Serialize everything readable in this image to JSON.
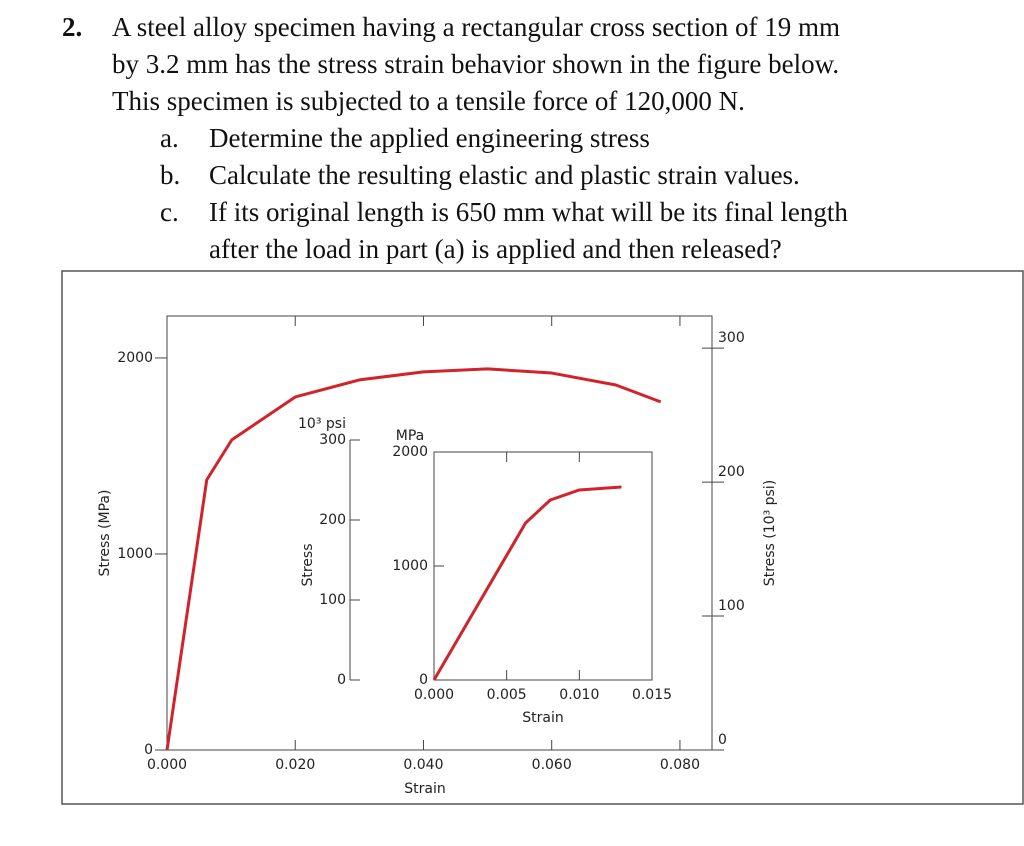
{
  "question": {
    "number": "2.",
    "lines": [
      "A steel alloy specimen having a rectangular cross section of 19 mm",
      "by 3.2 mm has the stress strain behavior shown in the figure below.",
      "This specimen is subjected to a tensile force of 120,000 N."
    ],
    "items": [
      {
        "label": "a.",
        "lines": [
          "Determine the applied engineering stress"
        ]
      },
      {
        "label": "b.",
        "lines": [
          "Calculate the resulting elastic and plastic strain values."
        ]
      },
      {
        "label": "c.",
        "lines": [
          "If its original length is 650 mm what will be its final length",
          "after the load in part (a) is applied and then released?"
        ]
      }
    ]
  },
  "chart_data": [
    {
      "type": "line",
      "x_label": "Strain",
      "y_label": "Stress (MPa)",
      "y2_label": "Stress (10³ psi)",
      "xlim": [
        0,
        0.085
      ],
      "ylim": [
        0,
        2214
      ],
      "y2lim": [
        0,
        324
      ],
      "xticks": [
        {
          "value": 0,
          "label": "0.000"
        },
        {
          "value": 0.02,
          "label": "0.020"
        },
        {
          "value": 0.04,
          "label": "0.040"
        },
        {
          "value": 0.06,
          "label": "0.060"
        },
        {
          "value": 0.08,
          "label": "0.080"
        }
      ],
      "yticks": [
        0,
        1000,
        2000
      ],
      "y2ticks": [
        0,
        100,
        200,
        300
      ],
      "series": [
        {
          "color": "#d0232a",
          "x": [
            0,
            0.0062,
            0.0101,
            0.02,
            0.03,
            0.04,
            0.05,
            0.06,
            0.07,
            0.077
          ],
          "values": [
            0,
            1378,
            1582,
            1801,
            1888,
            1929,
            1944,
            1923,
            1862,
            1776
          ]
        }
      ]
    },
    {
      "type": "line",
      "x_label": "Strain",
      "y_label": "Stress",
      "y_unit": "MPa",
      "y2_unit": "10³ psi",
      "xlim": [
        0,
        0.015
      ],
      "ylim": [
        0,
        2000
      ],
      "y2lim": [
        0,
        285
      ],
      "xticks": [
        {
          "value": 0,
          "label": "0.000"
        },
        {
          "value": 0.005,
          "label": "0.005"
        },
        {
          "value": 0.01,
          "label": "0.010"
        },
        {
          "value": 0.015,
          "label": "0.015"
        }
      ],
      "yticks": [
        0,
        1000,
        2000
      ],
      "y2ticks": [
        0,
        100,
        200,
        300
      ],
      "series": [
        {
          "color": "#d0232a",
          "x": [
            0,
            0.0063,
            0.008,
            0.01,
            0.0129
          ],
          "values": [
            0,
            1377,
            1579,
            1667,
            1693
          ]
        }
      ]
    }
  ]
}
